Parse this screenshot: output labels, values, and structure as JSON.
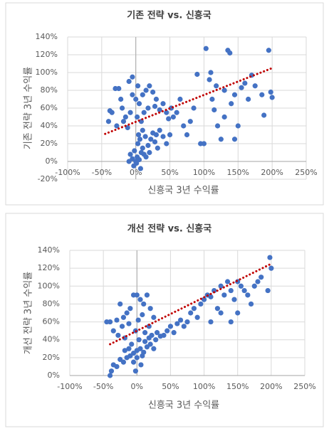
{
  "chart_data": [
    {
      "type": "scatter",
      "title": "기존 전략 vs. 신흥국",
      "x_label": "신흥국 3년 수익률",
      "y_label": "기존 전략 3년 수익률",
      "xlim": [
        -100,
        250
      ],
      "ylim": [
        -20,
        140
      ],
      "xticks": [
        {
          "value": -100,
          "label": "-100%"
        },
        {
          "value": -50,
          "label": "-50%"
        },
        {
          "value": 0,
          "label": "0%"
        },
        {
          "value": 50,
          "label": "50%"
        },
        {
          "value": 100,
          "label": "100%"
        },
        {
          "value": 150,
          "label": "150%"
        },
        {
          "value": 200,
          "label": "200%"
        },
        {
          "value": 250,
          "label": "250%"
        }
      ],
      "yticks": [
        {
          "value": -20,
          "label": "-20%"
        },
        {
          "value": 0,
          "label": "0%"
        },
        {
          "value": 20,
          "label": "20%"
        },
        {
          "value": 40,
          "label": "40%"
        },
        {
          "value": 60,
          "label": "60%"
        },
        {
          "value": 80,
          "label": "80%"
        },
        {
          "value": 100,
          "label": "100%"
        },
        {
          "value": 120,
          "label": "120%"
        },
        {
          "value": 140,
          "label": "140%"
        }
      ],
      "grid": true,
      "color": "#4472c4",
      "x": [
        0,
        2,
        5,
        8,
        -5,
        10,
        3,
        -2,
        12,
        15,
        6,
        -8,
        18,
        20,
        1,
        -3,
        7,
        -10,
        4,
        14,
        22,
        25,
        30,
        28,
        35,
        40,
        45,
        50,
        32,
        10,
        -30,
        -25,
        -20,
        -15,
        -10,
        -5,
        0,
        5,
        10,
        15,
        20,
        25,
        30,
        -35,
        -40,
        -38,
        -28,
        -18,
        -12,
        -8,
        2,
        8,
        12,
        18,
        -22,
        -5,
        3,
        28,
        35,
        40,
        45,
        48,
        52,
        55,
        60,
        65,
        70,
        75,
        80,
        85,
        90,
        100,
        103,
        110,
        112,
        115,
        120,
        125,
        130,
        135,
        138,
        140,
        145,
        150,
        155,
        160,
        165,
        170,
        175,
        185,
        188,
        195,
        198,
        200,
        108,
        118,
        145,
        95,
        130
      ],
      "values": [
        0,
        5,
        2,
        10,
        3,
        15,
        20,
        12,
        8,
        5,
        25,
        8,
        18,
        10,
        -2,
        -5,
        -8,
        0,
        30,
        28,
        25,
        32,
        30,
        22,
        35,
        28,
        20,
        30,
        15,
        35,
        82,
        82,
        60,
        50,
        90,
        95,
        70,
        65,
        75,
        80,
        85,
        78,
        70,
        55,
        45,
        57,
        40,
        45,
        38,
        55,
        50,
        45,
        55,
        60,
        70,
        75,
        85,
        62,
        58,
        65,
        55,
        48,
        60,
        50,
        55,
        70,
        40,
        30,
        45,
        60,
        98,
        20,
        127,
        100,
        70,
        58,
        40,
        25,
        50,
        125,
        122,
        65,
        75,
        40,
        83,
        88,
        70,
        97,
        85,
        75,
        52,
        125,
        78,
        72,
        92,
        85,
        25,
        20,
        80
      ],
      "trendline": {
        "color": "#c00000",
        "x": [
          -45,
          200
        ],
        "values": [
          31,
          105
        ]
      }
    },
    {
      "type": "scatter",
      "title": "개선 전략 vs. 신흥국",
      "x_label": "신흥국 3년 수익률",
      "y_label": "개선 전략 3년 수익률",
      "xlim": [
        -100,
        250
      ],
      "ylim": [
        0,
        140
      ],
      "xticks": [
        {
          "value": -100,
          "label": "-100%"
        },
        {
          "value": -50,
          "label": "-50%"
        },
        {
          "value": 0,
          "label": "0%"
        },
        {
          "value": 50,
          "label": "50%"
        },
        {
          "value": 100,
          "label": "100%"
        },
        {
          "value": 150,
          "label": "150%"
        },
        {
          "value": 200,
          "label": "200%"
        },
        {
          "value": 250,
          "label": "250%"
        }
      ],
      "yticks": [
        {
          "value": 0,
          "label": "0%"
        },
        {
          "value": 20,
          "label": "20%"
        },
        {
          "value": 40,
          "label": "40%"
        },
        {
          "value": 60,
          "label": "60%"
        },
        {
          "value": 80,
          "label": "80%"
        },
        {
          "value": 100,
          "label": "100%"
        },
        {
          "value": 120,
          "label": "120%"
        },
        {
          "value": 140,
          "label": "140%"
        }
      ],
      "grid": true,
      "color": "#4472c4",
      "x": [
        -40,
        -38,
        -35,
        -30,
        -25,
        -20,
        -15,
        -10,
        -5,
        0,
        5,
        10,
        15,
        20,
        25,
        -5,
        0,
        8,
        12,
        18,
        -12,
        3,
        22,
        28,
        30,
        35,
        -8,
        -18,
        6,
        -2,
        -45,
        -40,
        -35,
        -30,
        -25,
        -20,
        -15,
        -10,
        -5,
        0,
        5,
        10,
        15,
        20,
        25,
        -22,
        -12,
        2,
        8,
        18,
        -28,
        -2,
        12,
        -18,
        40,
        45,
        50,
        55,
        60,
        65,
        70,
        75,
        80,
        85,
        90,
        95,
        100,
        105,
        110,
        115,
        120,
        125,
        130,
        135,
        140,
        145,
        150,
        155,
        160,
        165,
        170,
        175,
        180,
        185,
        195,
        198,
        200,
        140,
        125,
        110,
        150
      ],
      "values": [
        0,
        5,
        12,
        10,
        18,
        15,
        20,
        22,
        25,
        28,
        30,
        26,
        32,
        35,
        30,
        15,
        20,
        22,
        38,
        42,
        30,
        40,
        45,
        40,
        48,
        44,
        35,
        28,
        12,
        5,
        60,
        60,
        50,
        62,
        80,
        65,
        70,
        75,
        90,
        90,
        85,
        80,
        90,
        75,
        65,
        55,
        58,
        62,
        68,
        55,
        45,
        50,
        48,
        42,
        45,
        50,
        55,
        48,
        58,
        62,
        55,
        60,
        70,
        75,
        65,
        80,
        85,
        90,
        88,
        95,
        75,
        100,
        90,
        105,
        95,
        85,
        105,
        100,
        95,
        90,
        80,
        100,
        105,
        110,
        95,
        132,
        120,
        60,
        70,
        60,
        70
      ],
      "trendline": {
        "color": "#c00000",
        "x": [
          -40,
          200
        ],
        "values": [
          35,
          125
        ]
      }
    }
  ]
}
